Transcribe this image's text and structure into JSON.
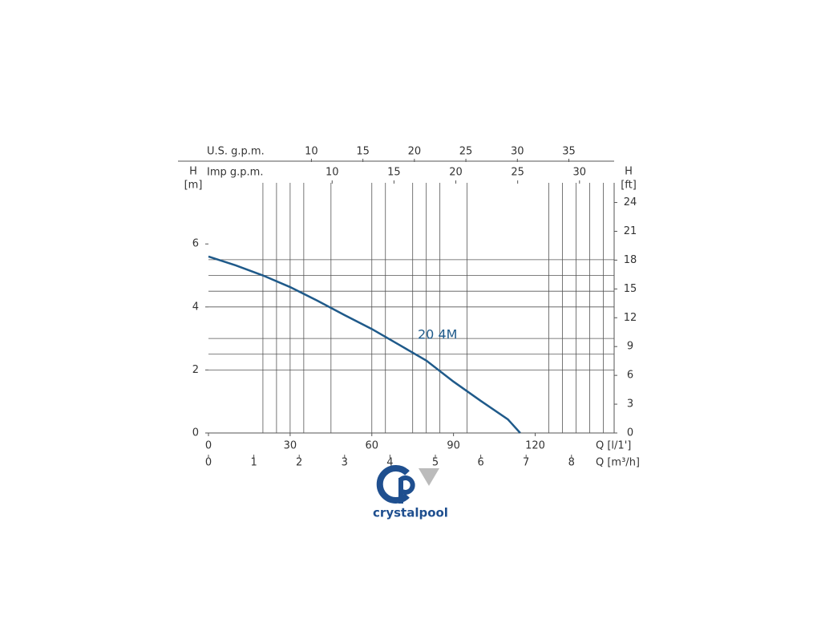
{
  "chart_data": {
    "type": "line",
    "x_label": "Q [l/1']",
    "xlim": [
      0,
      149
    ],
    "xticks": [
      0,
      30,
      60,
      90,
      120
    ],
    "y_label": "H",
    "y_unit": "[m]",
    "ylim": [
      0,
      7.94
    ],
    "yticks": [
      0,
      2,
      4,
      6
    ],
    "y2_label": "H",
    "y2_unit": "[ft]",
    "y2lim": [
      0,
      26.05
    ],
    "y2ticks": [
      0,
      3,
      6,
      9,
      12,
      15,
      18,
      21,
      24
    ],
    "x_axes": [
      {
        "label": "Imp g.p.m.",
        "lim": [
          0,
          32.8
        ],
        "ticks": [
          10,
          15,
          20,
          25,
          30
        ]
      },
      {
        "label": "U.S. g.p.m.",
        "lim": [
          0,
          39.4
        ],
        "ticks": [
          10,
          15,
          20,
          25,
          30,
          35
        ]
      },
      {
        "label": "Q [m³/h]",
        "lim": [
          0,
          8.94
        ],
        "ticks": [
          0,
          1,
          2,
          3,
          4,
          5,
          6,
          7,
          8
        ]
      }
    ],
    "xgrid": [
      20,
      25,
      30,
      35,
      45,
      60,
      65,
      75,
      80,
      85,
      95,
      125,
      130,
      135,
      140,
      145
    ],
    "ygrid": [
      2,
      2.5,
      3,
      4,
      4.5,
      5,
      5.5
    ],
    "series": [
      {
        "name": "20 4M",
        "color": "#1f5a8a",
        "x": [
          0,
          10,
          20,
          30,
          40,
          50,
          60,
          70,
          80,
          90,
          100,
          110,
          114.5
        ],
        "values": [
          5.6,
          5.32,
          5.0,
          4.63,
          4.2,
          3.74,
          3.3,
          2.8,
          2.3,
          1.63,
          1.02,
          0.43,
          0
        ]
      }
    ]
  },
  "logo": {
    "text": "crystalpool"
  }
}
